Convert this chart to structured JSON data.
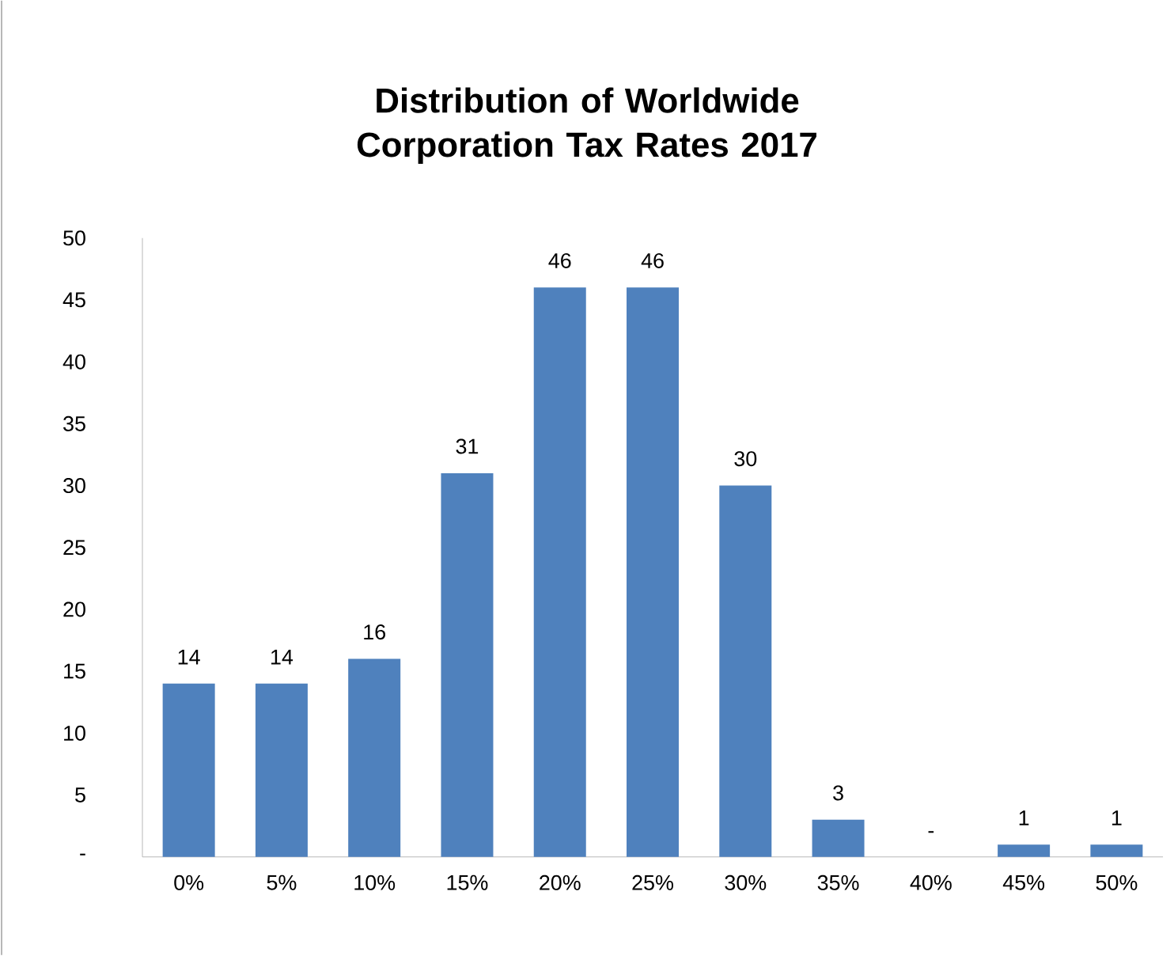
{
  "chart_data": {
    "type": "bar",
    "title": "Distribution of Worldwide Corporation Tax Rates 2017",
    "categories": [
      "0%",
      "5%",
      "10%",
      "15%",
      "20%",
      "25%",
      "30%",
      "35%",
      "40%",
      "45%",
      "50%"
    ],
    "values": [
      14,
      14,
      16,
      31,
      46,
      46,
      30,
      3,
      0,
      1,
      1
    ],
    "value_labels": [
      "14",
      "14",
      "16",
      "31",
      "46",
      "46",
      "30",
      "3",
      "-",
      "1",
      "1"
    ],
    "color": "#4f81bd",
    "ylim": [
      0,
      50
    ],
    "yticks": [
      {
        "value": 0,
        "label": "-"
      },
      5,
      10,
      15,
      20,
      25,
      30,
      35,
      40,
      45,
      50
    ],
    "grid": false
  }
}
